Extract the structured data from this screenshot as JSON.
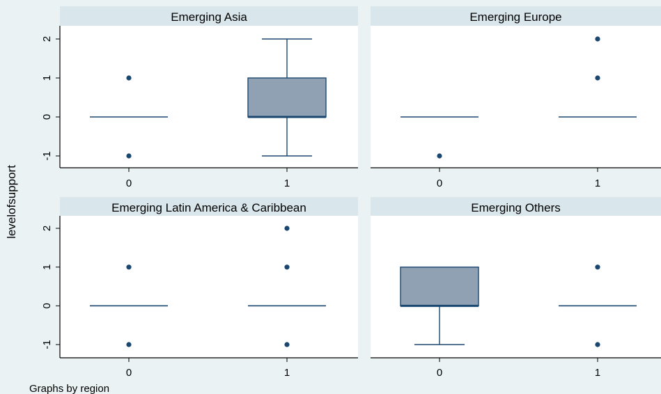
{
  "chart_data": {
    "type": "box",
    "ylabel": "levelofsupport",
    "note": "Graphs by region",
    "xticks": [
      "0",
      "1"
    ],
    "yticks": [
      "-1",
      "0",
      "1",
      "2"
    ],
    "ylim": [
      -1,
      2
    ],
    "colors": {
      "box_fill": "#8fa1b3",
      "line": "#1a476f",
      "background": "#eaf2f3",
      "plot_bg": "#ffffff",
      "strip_bg": "#d9e6eb"
    },
    "panels": [
      {
        "title": "Emerging Asia",
        "groups": [
          {
            "x": "0",
            "median": 0,
            "q1": 0,
            "q3": 0,
            "whisker_low": 0,
            "whisker_high": 0,
            "outliers": [
              -1,
              1
            ]
          },
          {
            "x": "1",
            "median": 0,
            "q1": 0,
            "q3": 1,
            "whisker_low": -1,
            "whisker_high": 2,
            "outliers": []
          }
        ]
      },
      {
        "title": "Emerging Europe",
        "groups": [
          {
            "x": "0",
            "median": 0,
            "q1": 0,
            "q3": 0,
            "whisker_low": 0,
            "whisker_high": 0,
            "outliers": [
              -1
            ]
          },
          {
            "x": "1",
            "median": 0,
            "q1": 0,
            "q3": 0,
            "whisker_low": 0,
            "whisker_high": 0,
            "outliers": [
              1,
              2
            ]
          }
        ]
      },
      {
        "title": "Emerging Latin America & Caribbean",
        "groups": [
          {
            "x": "0",
            "median": 0,
            "q1": 0,
            "q3": 0,
            "whisker_low": 0,
            "whisker_high": 0,
            "outliers": [
              -1,
              1
            ]
          },
          {
            "x": "1",
            "median": 0,
            "q1": 0,
            "q3": 0,
            "whisker_low": 0,
            "whisker_high": 0,
            "outliers": [
              -1,
              1,
              2
            ]
          }
        ]
      },
      {
        "title": "Emerging Others",
        "groups": [
          {
            "x": "0",
            "median": 0,
            "q1": 0,
            "q3": 1,
            "whisker_low": -1,
            "whisker_high": 1,
            "outliers": []
          },
          {
            "x": "1",
            "median": 0,
            "q1": 0,
            "q3": 0,
            "whisker_low": 0,
            "whisker_high": 0,
            "outliers": [
              -1,
              1
            ]
          }
        ]
      }
    ]
  }
}
